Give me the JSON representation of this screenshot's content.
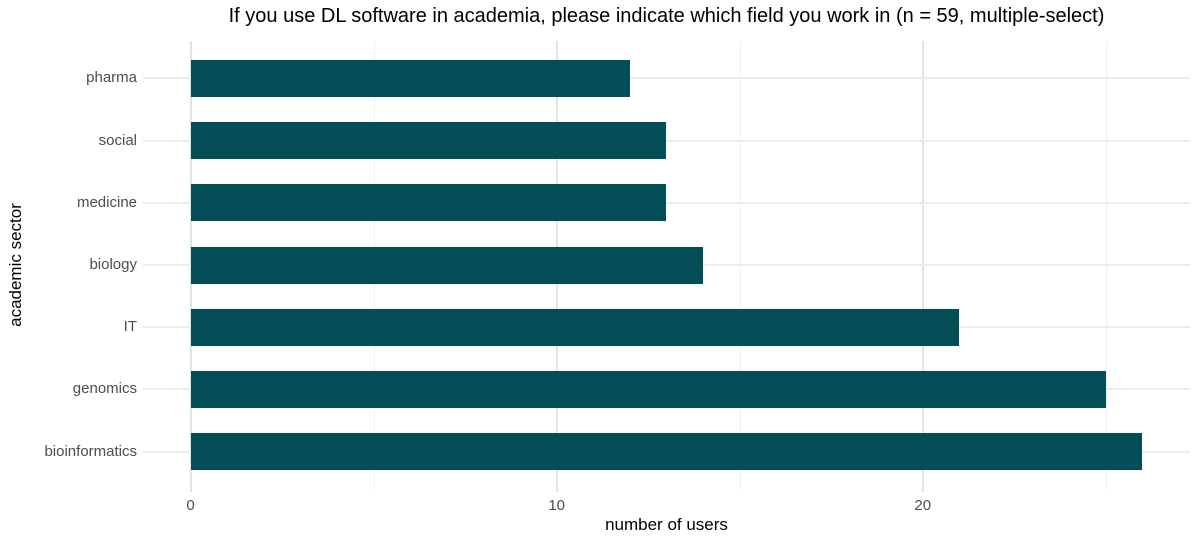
{
  "chart_title": "If you use DL software in academia, please indicate which field you work in (n = 59, multiple-select)",
  "colors": {
    "bar": "#034d57",
    "major_grid": "#e2e2e2",
    "minor_grid": "#efefef",
    "axis_text": "#4d4d4d",
    "title_text": "#000000",
    "background": "#ffffff"
  },
  "chart_data": {
    "type": "bar",
    "orientation": "horizontal",
    "title": "If you use DL software in academia, please indicate which field you work in (n = 59, multiple-select)",
    "xlabel": "number of users",
    "ylabel": "academic sector",
    "categories": [
      "pharma",
      "social",
      "medicine",
      "biology",
      "IT",
      "genomics",
      "bioinformatics"
    ],
    "values": [
      12,
      13,
      13,
      14,
      21,
      25,
      26
    ],
    "n_respondents": 59,
    "xlim": [
      -1.3,
      27.3
    ],
    "x_major_ticks": [
      0,
      10,
      20
    ],
    "x_minor_ticks": [
      5,
      15,
      25
    ],
    "x_tick_labels": [
      "0",
      "10",
      "20"
    ],
    "grid": "on",
    "legend": "none",
    "bar_color": "#034d57"
  }
}
